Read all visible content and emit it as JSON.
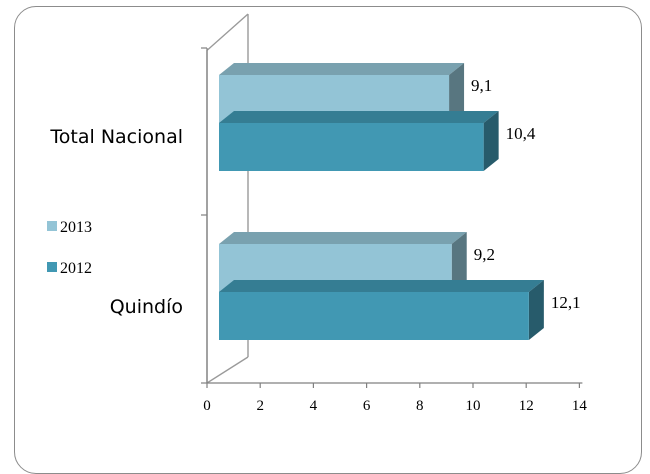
{
  "chart_data": {
    "type": "bar",
    "orientation": "horizontal",
    "three_d": true,
    "categories": [
      "Total Nacional",
      "Quindío"
    ],
    "series": [
      {
        "name": "2013",
        "values": [
          9.1,
          9.2
        ],
        "value_labels": [
          "9,1",
          "9,2"
        ],
        "color": "#93c4d6"
      },
      {
        "name": "2012",
        "values": [
          10.4,
          12.1
        ],
        "value_labels": [
          "10,4",
          "12,1"
        ],
        "color": "#4198b3"
      }
    ],
    "xlim": [
      0,
      14
    ],
    "x_ticks": [
      0,
      2,
      4,
      6,
      8,
      10,
      12,
      14
    ],
    "x_tick_labels": [
      "0",
      "2",
      "4",
      "6",
      "8",
      "10",
      "12",
      "14"
    ],
    "grid": false,
    "legend_position": "left",
    "title": "",
    "xlabel": "",
    "ylabel": ""
  }
}
